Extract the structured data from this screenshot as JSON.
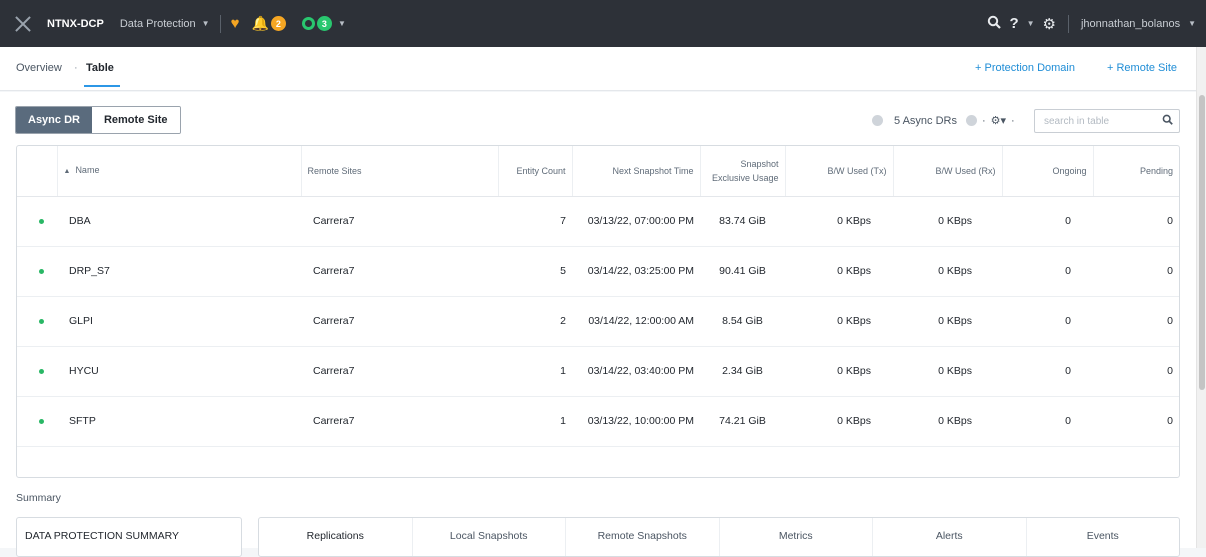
{
  "topbar": {
    "cluster_name": "NTNX-DCP",
    "menu_label": "Data Protection",
    "alerts_count": "2",
    "tasks_count": "3",
    "username": "jhonnathan_bolanos"
  },
  "breadcrumb": {
    "overview": "Overview",
    "separator": "·",
    "current": "Table"
  },
  "actions": {
    "protection_domain": "+ Protection Domain",
    "remote_site": "+ Remote Site"
  },
  "toggle": {
    "async_dr": "Async DR",
    "remote_site": "Remote Site"
  },
  "table_meta": {
    "count_label": "5 Async DRs",
    "search_placeholder": "search in table"
  },
  "columns": {
    "name": "Name",
    "remote_sites": "Remote Sites",
    "entity_count": "Entity Count",
    "next_snapshot": "Next Snapshot Time",
    "snapshot_usage": "Snapshot Exclusive Usage",
    "bw_tx": "B/W Used (Tx)",
    "bw_rx": "B/W Used (Rx)",
    "ongoing": "Ongoing",
    "pending": "Pending"
  },
  "rows": [
    {
      "name": "DBA",
      "remote": "Carrera7",
      "entities": "7",
      "snapshot_time": "03/13/22, 07:00:00 PM",
      "usage": "83.74 GiB",
      "tx": "0 KBps",
      "rx": "0 KBps",
      "ongoing": "0",
      "pending": "0"
    },
    {
      "name": "DRP_S7",
      "remote": "Carrera7",
      "entities": "5",
      "snapshot_time": "03/14/22, 03:25:00 PM",
      "usage": "90.41 GiB",
      "tx": "0 KBps",
      "rx": "0 KBps",
      "ongoing": "0",
      "pending": "0"
    },
    {
      "name": "GLPI",
      "remote": "Carrera7",
      "entities": "2",
      "snapshot_time": "03/14/22, 12:00:00 AM",
      "usage": "8.54 GiB",
      "tx": "0 KBps",
      "rx": "0 KBps",
      "ongoing": "0",
      "pending": "0"
    },
    {
      "name": "HYCU",
      "remote": "Carrera7",
      "entities": "1",
      "snapshot_time": "03/14/22, 03:40:00 PM",
      "usage": "2.34 GiB",
      "tx": "0 KBps",
      "rx": "0 KBps",
      "ongoing": "0",
      "pending": "0"
    },
    {
      "name": "SFTP",
      "remote": "Carrera7",
      "entities": "1",
      "snapshot_time": "03/13/22, 10:00:00 PM",
      "usage": "74.21 GiB",
      "tx": "0 KBps",
      "rx": "0 KBps",
      "ongoing": "0",
      "pending": "0"
    }
  ],
  "summary": {
    "label": "Summary",
    "card_title": "DATA PROTECTION SUMMARY",
    "tabs": [
      "Replications",
      "Local Snapshots",
      "Remote Snapshots",
      "Metrics",
      "Alerts",
      "Events"
    ]
  },
  "colors": {
    "accent": "#1f8dd6",
    "status_ok": "#29b765",
    "warning": "#f5a623"
  }
}
